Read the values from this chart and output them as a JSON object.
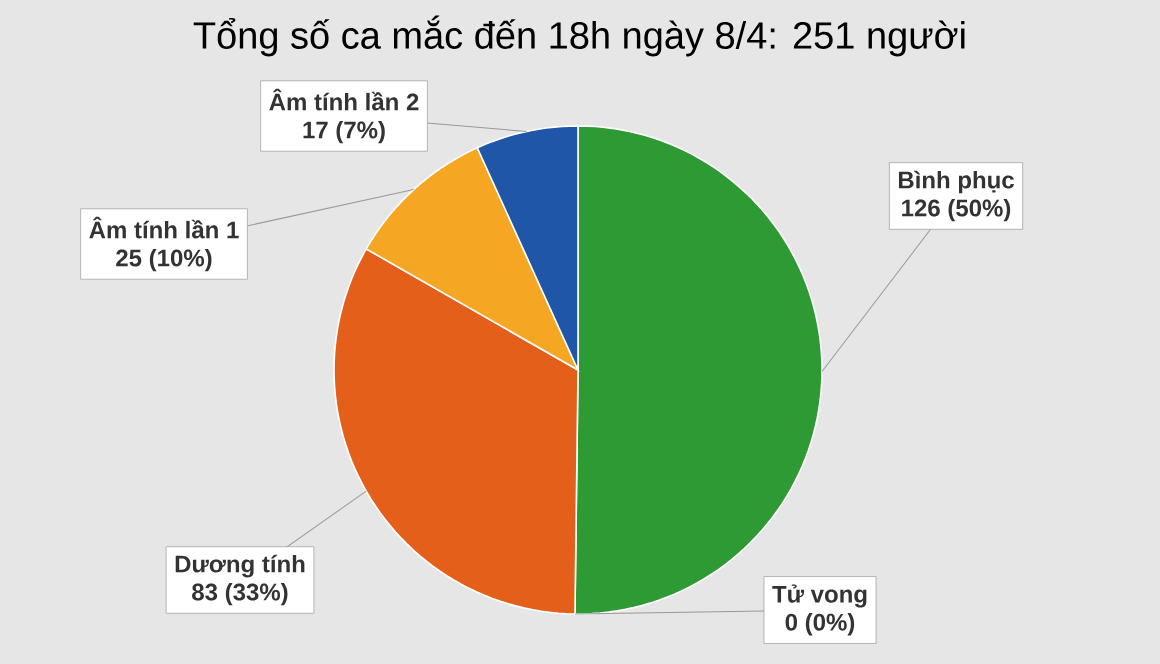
{
  "chart_data": {
    "type": "pie",
    "title": "Tổng số ca mắc đến 18h ngày 8/4: 251 người",
    "categories": [
      "Bình phục",
      "Tử vong",
      "Dương tính",
      "Âm tính lần 1",
      "Âm tính lần 2"
    ],
    "values": [
      126,
      0,
      83,
      25,
      17
    ],
    "value_labels": [
      "126 (50%)",
      "0 (0%)",
      "83 (33%)",
      "25 (10%)",
      "17 (7%)"
    ],
    "colors": [
      "#2e9a34",
      "#9e9e9e",
      "#e35f1a",
      "#f5a623",
      "#1f56a8"
    ]
  }
}
